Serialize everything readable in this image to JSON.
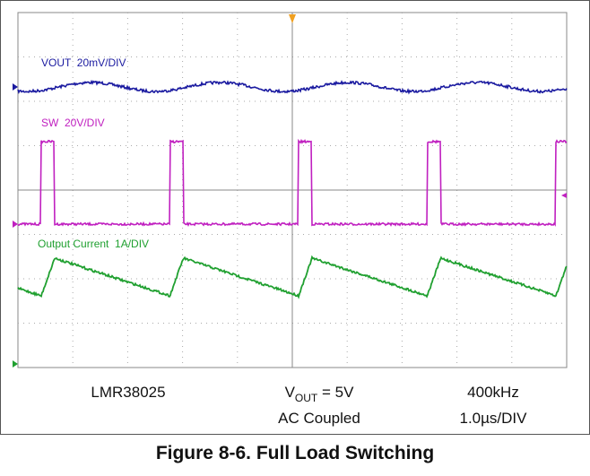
{
  "traces": [
    {
      "label": "VOUT  20mV/DIV"
    },
    {
      "label": "SW  20V/DIV"
    },
    {
      "label": "Output Current  1A/DIV"
    }
  ],
  "captions": {
    "device": "LMR38025",
    "vout": {
      "main": "V",
      "sub": "OUT",
      "rest": " = 5V"
    },
    "coupling": "AC Coupled",
    "frequency": "400kHz",
    "timebase": "1.0µs/DIV"
  },
  "figure_title": "Figure 8-6. Full Load Switching"
}
